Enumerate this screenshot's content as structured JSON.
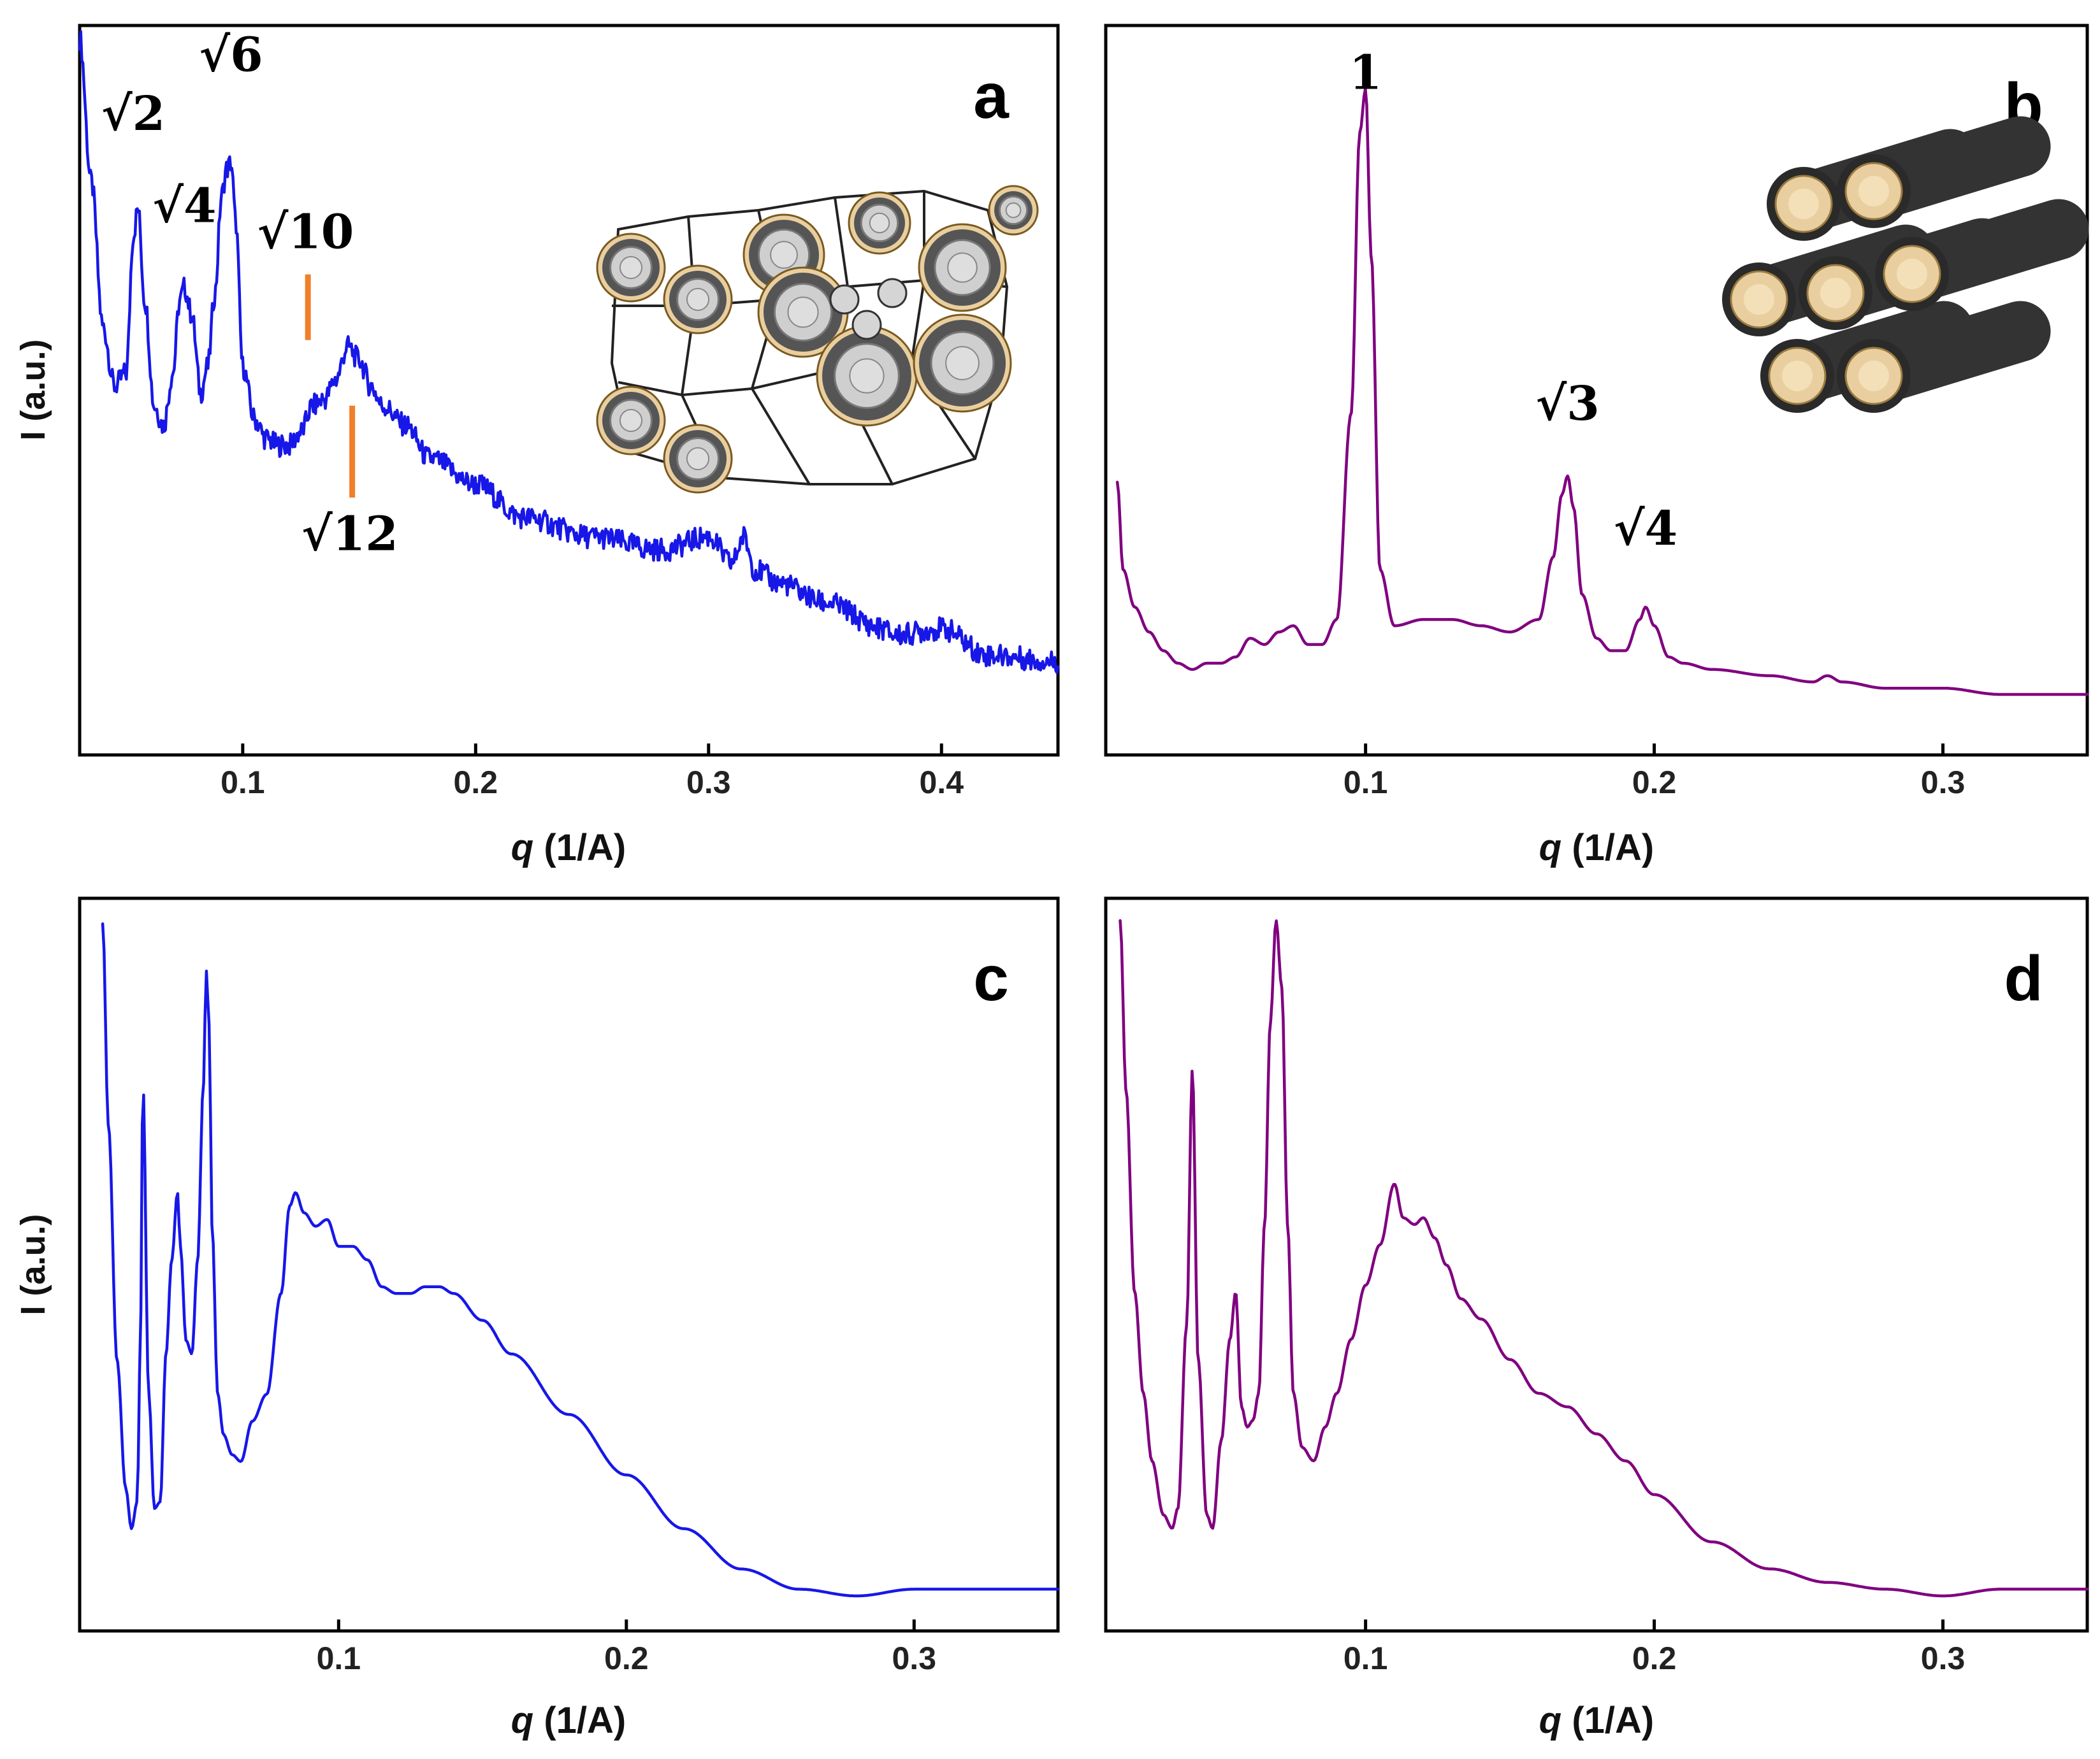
{
  "colors": {
    "blue": "#1717e8",
    "purple": "#800080",
    "marker": "#f07f2a",
    "beige": "#e9cfa0"
  },
  "chart_data": [
    {
      "panel": "a",
      "type": "line",
      "xlabel_var": "q",
      "xlabel_unit": " (1/A)",
      "ylabel": "I (a.u.)",
      "xlim": [
        0.03,
        0.45
      ],
      "xticks": [
        "0.1",
        "0.2",
        "0.3",
        "0.4"
      ],
      "xtick_values": [
        0.1,
        0.2,
        0.3,
        0.4
      ],
      "color": "blue",
      "x": [
        0.03,
        0.035,
        0.04,
        0.045,
        0.05,
        0.053,
        0.055,
        0.058,
        0.062,
        0.066,
        0.07,
        0.073,
        0.075,
        0.078,
        0.082,
        0.085,
        0.088,
        0.091,
        0.093,
        0.095,
        0.097,
        0.1,
        0.105,
        0.11,
        0.115,
        0.12,
        0.125,
        0.13,
        0.135,
        0.14,
        0.145,
        0.15,
        0.155,
        0.16,
        0.17,
        0.18,
        0.2,
        0.22,
        0.25,
        0.28,
        0.3,
        0.31,
        0.315,
        0.32,
        0.33,
        0.35,
        0.375,
        0.38,
        0.4,
        0.42,
        0.45
      ],
      "y": [
        1.0,
        0.78,
        0.56,
        0.47,
        0.49,
        0.7,
        0.74,
        0.6,
        0.44,
        0.41,
        0.49,
        0.6,
        0.62,
        0.58,
        0.46,
        0.5,
        0.61,
        0.76,
        0.8,
        0.81,
        0.72,
        0.5,
        0.42,
        0.39,
        0.38,
        0.38,
        0.4,
        0.44,
        0.45,
        0.48,
        0.53,
        0.51,
        0.47,
        0.44,
        0.41,
        0.36,
        0.32,
        0.27,
        0.24,
        0.22,
        0.24,
        0.2,
        0.24,
        0.19,
        0.17,
        0.14,
        0.1,
        0.09,
        0.1,
        0.06,
        0.05
      ],
      "peak_labels": [
        {
          "text": "√2",
          "q": 0.053,
          "y": 0.86
        },
        {
          "text": "√4",
          "q": 0.075,
          "y": 0.72
        },
        {
          "text": "√6",
          "q": 0.095,
          "y": 0.95
        },
        {
          "text": "√10",
          "q": 0.127,
          "y": 0.68
        },
        {
          "text": "√12",
          "q": 0.146,
          "y": 0.22
        }
      ],
      "markers_q": [
        0.128,
        0.147
      ],
      "inset": "cubic bicontinuous micellar network illustration"
    },
    {
      "panel": "b",
      "type": "line",
      "xlabel_var": "q",
      "xlabel_unit": " (1/A)",
      "ylabel": "",
      "xlim": [
        0.01,
        0.35
      ],
      "xticks": [
        "0.1",
        "0.2",
        "0.3"
      ],
      "xtick_values": [
        0.1,
        0.2,
        0.3
      ],
      "color": "purple",
      "x": [
        0.014,
        0.016,
        0.02,
        0.025,
        0.03,
        0.035,
        0.04,
        0.045,
        0.05,
        0.055,
        0.06,
        0.065,
        0.07,
        0.075,
        0.08,
        0.085,
        0.09,
        0.095,
        0.098,
        0.1,
        0.102,
        0.105,
        0.11,
        0.12,
        0.13,
        0.14,
        0.15,
        0.16,
        0.165,
        0.168,
        0.17,
        0.172,
        0.175,
        0.18,
        0.185,
        0.19,
        0.195,
        0.197,
        0.2,
        0.205,
        0.21,
        0.22,
        0.24,
        0.255,
        0.26,
        0.265,
        0.28,
        0.3,
        0.32,
        0.35
      ],
      "y": [
        0.34,
        0.2,
        0.14,
        0.1,
        0.07,
        0.05,
        0.04,
        0.05,
        0.05,
        0.06,
        0.09,
        0.08,
        0.1,
        0.11,
        0.08,
        0.08,
        0.12,
        0.45,
        0.9,
        0.97,
        0.7,
        0.2,
        0.11,
        0.12,
        0.12,
        0.11,
        0.1,
        0.12,
        0.22,
        0.32,
        0.35,
        0.3,
        0.16,
        0.09,
        0.07,
        0.07,
        0.12,
        0.14,
        0.11,
        0.06,
        0.05,
        0.04,
        0.03,
        0.02,
        0.03,
        0.02,
        0.01,
        0.01,
        0.0,
        0.0
      ],
      "peak_labels": [
        {
          "text": "1",
          "q": 0.1,
          "y": 0.97
        },
        {
          "text": "√3",
          "q": 0.17,
          "y": 0.44
        },
        {
          "text": "√4",
          "q": 0.197,
          "y": 0.24
        }
      ],
      "inset": "hexagonally packed cylindrical micelles illustration"
    },
    {
      "panel": "c",
      "type": "line",
      "xlabel_var": "q",
      "xlabel_unit": " (1/A)",
      "ylabel": "I (a.u.)",
      "xlim": [
        0.01,
        0.35
      ],
      "xticks": [
        "0.1",
        "0.2",
        "0.3"
      ],
      "xtick_values": [
        0.1,
        0.2,
        0.3
      ],
      "color": "blue",
      "x": [
        0.018,
        0.02,
        0.023,
        0.026,
        0.028,
        0.03,
        0.031,
        0.032,
        0.034,
        0.036,
        0.038,
        0.04,
        0.042,
        0.044,
        0.045,
        0.047,
        0.049,
        0.051,
        0.053,
        0.054,
        0.055,
        0.056,
        0.058,
        0.06,
        0.063,
        0.066,
        0.07,
        0.075,
        0.08,
        0.083,
        0.085,
        0.088,
        0.092,
        0.096,
        0.1,
        0.105,
        0.11,
        0.115,
        0.12,
        0.125,
        0.13,
        0.135,
        0.14,
        0.15,
        0.16,
        0.18,
        0.2,
        0.22,
        0.24,
        0.26,
        0.28,
        0.3,
        0.32,
        0.35
      ],
      "y": [
        1.0,
        0.7,
        0.35,
        0.16,
        0.1,
        0.14,
        0.35,
        0.76,
        0.3,
        0.13,
        0.14,
        0.36,
        0.5,
        0.6,
        0.52,
        0.38,
        0.36,
        0.5,
        0.76,
        0.93,
        0.85,
        0.55,
        0.3,
        0.24,
        0.21,
        0.2,
        0.26,
        0.3,
        0.45,
        0.58,
        0.6,
        0.57,
        0.55,
        0.56,
        0.52,
        0.52,
        0.5,
        0.46,
        0.45,
        0.45,
        0.46,
        0.46,
        0.45,
        0.41,
        0.36,
        0.27,
        0.18,
        0.1,
        0.04,
        0.01,
        0.0,
        0.01,
        0.01,
        0.01
      ]
    },
    {
      "panel": "d",
      "type": "line",
      "xlabel_var": "q",
      "xlabel_unit": " (1/A)",
      "ylabel": "",
      "xlim": [
        0.01,
        0.35
      ],
      "xticks": [
        "0.1",
        "0.2",
        "0.3"
      ],
      "xtick_values": [
        0.1,
        0.2,
        0.3
      ],
      "color": "purple",
      "x": [
        0.015,
        0.017,
        0.02,
        0.023,
        0.026,
        0.03,
        0.033,
        0.035,
        0.038,
        0.04,
        0.042,
        0.045,
        0.047,
        0.05,
        0.053,
        0.055,
        0.057,
        0.059,
        0.061,
        0.063,
        0.065,
        0.067,
        0.069,
        0.071,
        0.073,
        0.075,
        0.078,
        0.082,
        0.086,
        0.09,
        0.095,
        0.1,
        0.105,
        0.11,
        0.113,
        0.117,
        0.12,
        0.124,
        0.128,
        0.133,
        0.14,
        0.15,
        0.16,
        0.17,
        0.18,
        0.19,
        0.2,
        0.22,
        0.24,
        0.26,
        0.28,
        0.3,
        0.32,
        0.35
      ],
      "y": [
        1.0,
        0.75,
        0.45,
        0.3,
        0.2,
        0.12,
        0.1,
        0.13,
        0.4,
        0.78,
        0.35,
        0.12,
        0.1,
        0.23,
        0.38,
        0.45,
        0.28,
        0.25,
        0.26,
        0.3,
        0.55,
        0.85,
        1.0,
        0.9,
        0.55,
        0.3,
        0.22,
        0.2,
        0.25,
        0.3,
        0.38,
        0.46,
        0.52,
        0.61,
        0.56,
        0.55,
        0.56,
        0.53,
        0.49,
        0.44,
        0.41,
        0.35,
        0.3,
        0.28,
        0.24,
        0.2,
        0.15,
        0.08,
        0.04,
        0.02,
        0.01,
        0.0,
        0.01,
        0.01
      ]
    }
  ]
}
